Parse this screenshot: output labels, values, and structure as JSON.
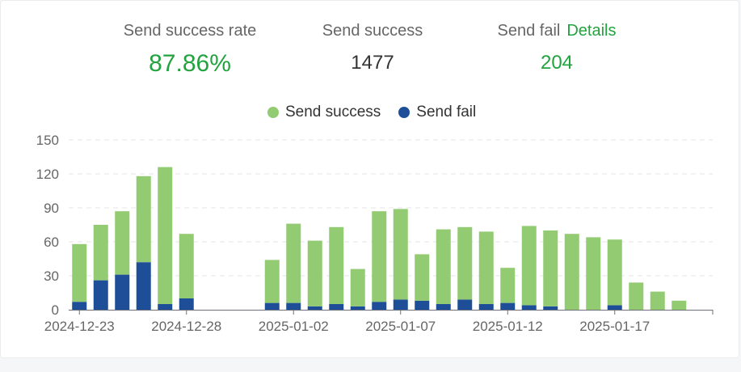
{
  "stats": {
    "rate_label": "Send success rate",
    "rate_value": "87.86%",
    "success_label": "Send success",
    "success_value": "1477",
    "fail_label": "Send fail",
    "fail_details": "Details",
    "fail_value": "204"
  },
  "colors": {
    "success": "#93cb72",
    "fail": "#1f4e98",
    "accent_green": "#22a33f"
  },
  "chart_data": {
    "type": "bar",
    "stacked": true,
    "categories": [
      "2024-12-23",
      "2024-12-24",
      "2024-12-25",
      "2024-12-26",
      "2024-12-27",
      "2024-12-28",
      "2024-12-29",
      "2024-12-30",
      "2024-12-31",
      "2025-01-01",
      "2025-01-02",
      "2025-01-03",
      "2025-01-04",
      "2025-01-05",
      "2025-01-06",
      "2025-01-07",
      "2025-01-08",
      "2025-01-09",
      "2025-01-10",
      "2025-01-11",
      "2025-01-12",
      "2025-01-13",
      "2025-01-14",
      "2025-01-15",
      "2025-01-16",
      "2025-01-17",
      "2025-01-18",
      "2025-01-19",
      "2025-01-20",
      "2025-01-21",
      "2025-01-22"
    ],
    "x_tick_labels": [
      "2024-12-23",
      "2024-12-28",
      "2025-01-02",
      "2025-01-07",
      "2025-01-12",
      "2025-01-17"
    ],
    "series": [
      {
        "name": "Send success",
        "color": "#93cb72",
        "values": [
          51,
          49,
          56,
          76,
          121,
          57,
          0,
          0,
          0,
          38,
          70,
          58,
          68,
          33,
          80,
          80,
          41,
          66,
          64,
          64,
          31,
          70,
          67,
          67,
          64,
          58,
          24,
          16,
          8,
          0,
          0
        ]
      },
      {
        "name": "Send fail",
        "color": "#1f4e98",
        "values": [
          7,
          26,
          31,
          42,
          5,
          10,
          0,
          0,
          0,
          6,
          6,
          3,
          5,
          3,
          7,
          9,
          8,
          5,
          9,
          5,
          6,
          4,
          3,
          0,
          0,
          4,
          0,
          0,
          0,
          0,
          0
        ]
      }
    ],
    "ylim": [
      0,
      150
    ],
    "yticks": [
      0,
      30,
      60,
      90,
      120,
      150
    ],
    "grid": true,
    "legend": "top"
  }
}
